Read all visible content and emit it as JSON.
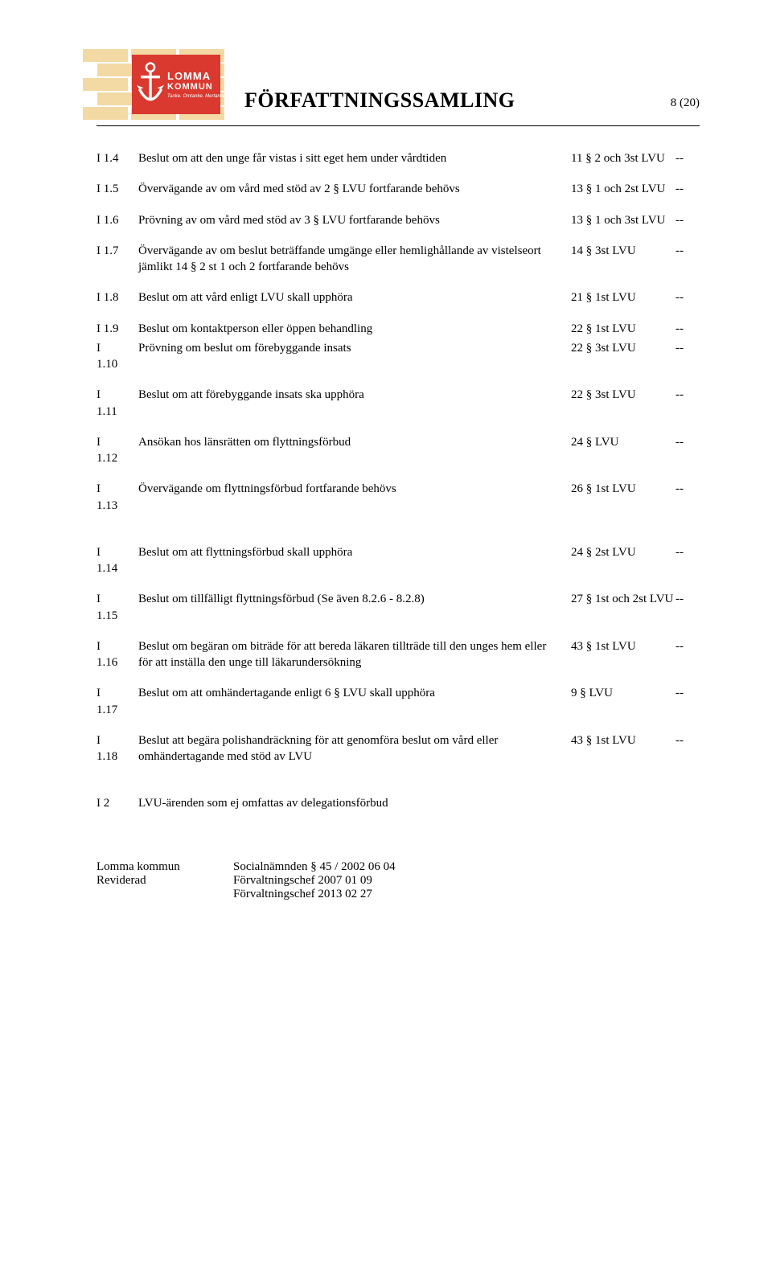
{
  "logo": {
    "line1": "LOMMA",
    "line2": "KOMMUN",
    "line3": "Tanke. Omtanke. Mertanke!",
    "brick_color": "#f3d9a4",
    "panel_color": "#d9392e",
    "anchor_color": "#ffffff"
  },
  "header": {
    "title": "FÖRFATTNINGSSAMLING",
    "page_indicator": "8 (20)"
  },
  "rows": [
    {
      "id": "I 1.4",
      "desc": "Beslut om att den unge får vistas i sitt eget hem under vårdtiden",
      "ref": "11 § 2 och 3st LVU",
      "deleg": "--"
    },
    {
      "id": "I 1.5",
      "desc": "Övervägande av om vård med stöd av 2 § LVU fortfarande behövs",
      "ref": "13 § 1 och 2st LVU",
      "deleg": "--"
    },
    {
      "id": "I 1.6",
      "desc": "Prövning av om vård med stöd av 3 § LVU fortfarande behövs",
      "ref": "13 § 1 och 3st LVU",
      "deleg": "--"
    },
    {
      "id": "I 1.7",
      "desc": "Övervägande av om beslut beträffande umgänge eller hemlighållande av vistelseort jämlikt 14 § 2 st 1 och 2 fortfarande behövs",
      "ref": "14 § 3st LVU",
      "deleg": "--"
    },
    {
      "id": "I 1.8",
      "desc": "Beslut om att vård enligt LVU skall upphöra",
      "ref": "21 § 1st LVU",
      "deleg": "--"
    },
    {
      "id": "I 1.9",
      "desc": "Beslut om kontaktperson eller öppen behandling",
      "ref": "22 § 1st LVU",
      "deleg": "--",
      "tight_after": true
    },
    {
      "id": "I 1.10",
      "desc": "Prövning om beslut om förebyggande insats",
      "ref": "22 § 3st LVU",
      "deleg": "--"
    },
    {
      "id": "I 1.11",
      "desc": "Beslut om att förebyggande insats ska upphöra",
      "ref": "22 § 3st LVU",
      "deleg": "--"
    },
    {
      "id": "I 1.12",
      "desc": "Ansökan hos länsrätten om flyttningsförbud",
      "ref": "24 § LVU",
      "deleg": "--"
    },
    {
      "id": "I 1.13",
      "desc": "Övervägande om flyttningsförbud fortfarande behövs",
      "ref": "26 § 1st LVU",
      "deleg": "--",
      "gap_after": true
    },
    {
      "id": "I 1.14",
      "desc": "Beslut om att flyttningsförbud skall upphöra",
      "ref": "24 § 2st LVU",
      "deleg": "--"
    },
    {
      "id": "I 1.15",
      "desc": "Beslut om tillfälligt flyttningsförbud (Se även 8.2.6 - 8.2.8)",
      "ref": "27 § 1st och 2st LVU",
      "deleg": "--"
    },
    {
      "id": "I 1.16",
      "desc": "Beslut om begäran om biträde för att bereda läkaren tillträde till den unges hem eller för att inställa den unge till läkarundersökning",
      "ref": "43 § 1st LVU",
      "deleg": "--"
    },
    {
      "id": "I 1.17",
      "desc": "Beslut om att omhändertagande enligt 6 § LVU skall upphöra",
      "ref": "9 § LVU",
      "deleg": "--"
    },
    {
      "id": "I 1.18",
      "desc": "Beslut att begära polishandräckning för att genomföra beslut om vård eller omhändertagande med stöd av LVU",
      "ref": "43 § 1st LVU",
      "deleg": "--",
      "gap_after": true
    },
    {
      "id": "I 2",
      "desc": "LVU-ärenden som ej omfattas av delegationsförbud",
      "ref": "",
      "deleg": "",
      "tight_after": true
    }
  ],
  "footer": {
    "left": [
      "Lomma kommun",
      "Reviderad"
    ],
    "right": [
      "Socialnämnden § 45 / 2002 06 04",
      "Förvaltningschef 2007 01 09",
      "Förvaltningschef 2013 02 27"
    ]
  }
}
